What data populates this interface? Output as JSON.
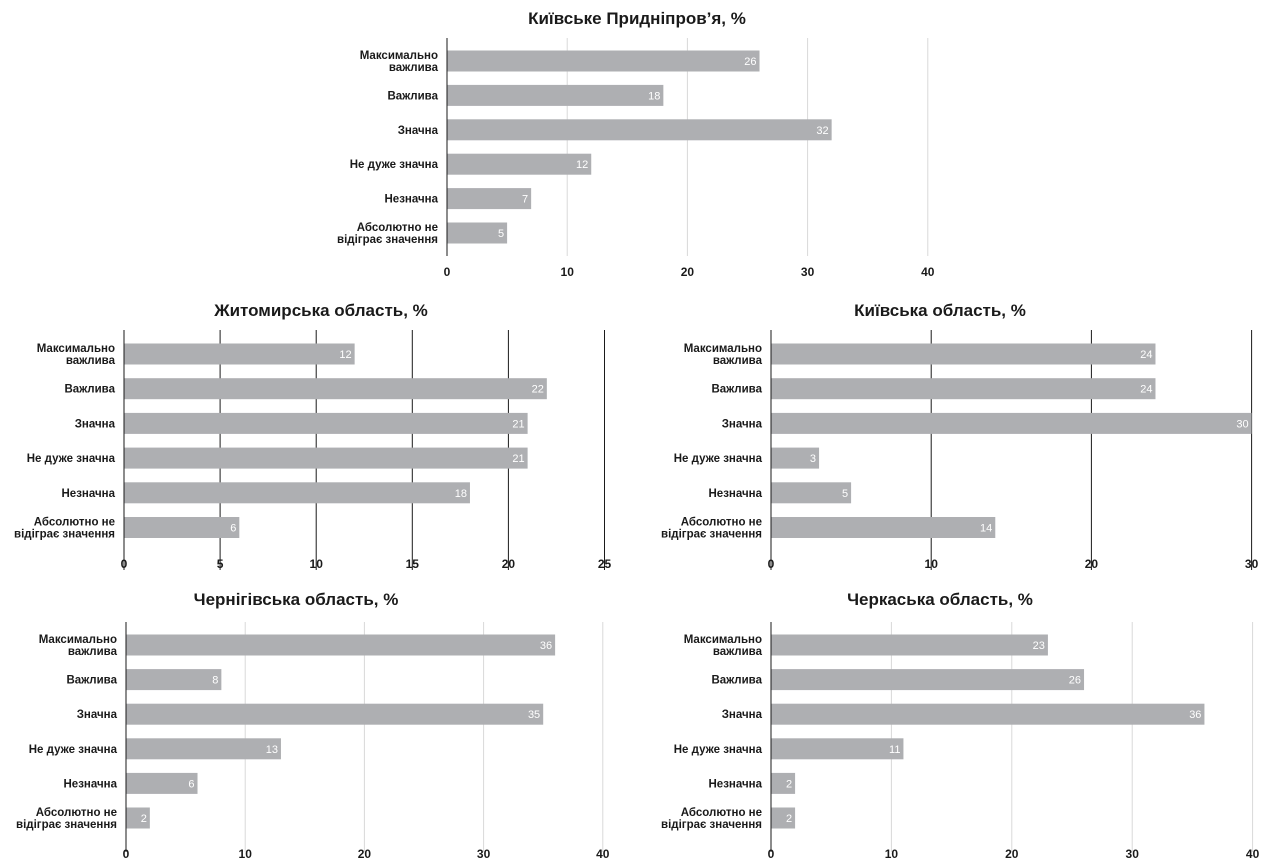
{
  "charts": [
    {
      "chart_data": {
        "type": "bar",
        "orientation": "horizontal",
        "title": "Київське Придніпров’я, %",
        "categories": [
          [
            "Максимально",
            "важлива"
          ],
          [
            "Важлива"
          ],
          [
            "Значна"
          ],
          [
            "Не дуже значна"
          ],
          [
            "Незначна"
          ],
          [
            "Абсолютно не",
            "відіграє значення"
          ]
        ],
        "values": [
          26,
          18,
          32,
          12,
          7,
          5
        ],
        "xlim": [
          0,
          40
        ],
        "xticks": [
          0,
          10,
          20,
          30,
          40
        ],
        "grid": "vertical",
        "grid_color": "#d9d9d9",
        "bar_color": "#aeafb2",
        "data_labels": true
      }
    },
    {
      "chart_data": {
        "type": "bar",
        "orientation": "horizontal",
        "title": "Житомирська область, %",
        "categories": [
          [
            "Максимально",
            "важлива"
          ],
          [
            "Важлива"
          ],
          [
            "Значна"
          ],
          [
            "Не дуже значна"
          ],
          [
            "Незначна"
          ],
          [
            "Абсолютно не",
            "відіграє значення"
          ]
        ],
        "values": [
          12,
          22,
          21,
          21,
          18,
          6
        ],
        "xlim": [
          0,
          25
        ],
        "xticks": [
          0,
          5,
          10,
          15,
          20,
          25
        ],
        "grid": "vertical",
        "grid_color": "#1a1a1a",
        "bar_color": "#aeafb2",
        "data_labels": true
      }
    },
    {
      "chart_data": {
        "type": "bar",
        "orientation": "horizontal",
        "title": "Київська область, %",
        "categories": [
          [
            "Максимально",
            "важлива"
          ],
          [
            "Важлива"
          ],
          [
            "Значна"
          ],
          [
            "Не дуже значна"
          ],
          [
            "Незначна"
          ],
          [
            "Абсолютно не",
            "відіграє значення"
          ]
        ],
        "values": [
          24,
          24,
          30,
          3,
          5,
          14
        ],
        "xlim": [
          0,
          30
        ],
        "xticks": [
          0,
          10,
          20,
          30
        ],
        "grid": "vertical",
        "grid_color": "#1a1a1a",
        "bar_color": "#aeafb2",
        "data_labels": true
      }
    },
    {
      "chart_data": {
        "type": "bar",
        "orientation": "horizontal",
        "title": "Чернігівська область, %",
        "categories": [
          [
            "Максимально",
            "важлива"
          ],
          [
            "Важлива"
          ],
          [
            "Значна"
          ],
          [
            "Не дуже значна"
          ],
          [
            "Незначна"
          ],
          [
            "Абсолютно не",
            "відіграє значення"
          ]
        ],
        "values": [
          36,
          8,
          35,
          13,
          6,
          2
        ],
        "xlim": [
          0,
          40
        ],
        "xticks": [
          0,
          10,
          20,
          30,
          40
        ],
        "grid": "vertical",
        "grid_color": "#d9d9d9",
        "bar_color": "#aeafb2",
        "data_labels": true
      }
    },
    {
      "chart_data": {
        "type": "bar",
        "orientation": "horizontal",
        "title": "Черкаська область, %",
        "categories": [
          [
            "Максимально",
            "важлива"
          ],
          [
            "Важлива"
          ],
          [
            "Значна"
          ],
          [
            "Не дуже значна"
          ],
          [
            "Незначна"
          ],
          [
            "Абсолютно не",
            "відіграє значення"
          ]
        ],
        "values": [
          23,
          26,
          36,
          11,
          2,
          2
        ],
        "xlim": [
          0,
          40
        ],
        "xticks": [
          0,
          10,
          20,
          30,
          40
        ],
        "grid": "vertical",
        "grid_color": "#d9d9d9",
        "bar_color": "#aeafb2",
        "data_labels": true
      }
    }
  ]
}
